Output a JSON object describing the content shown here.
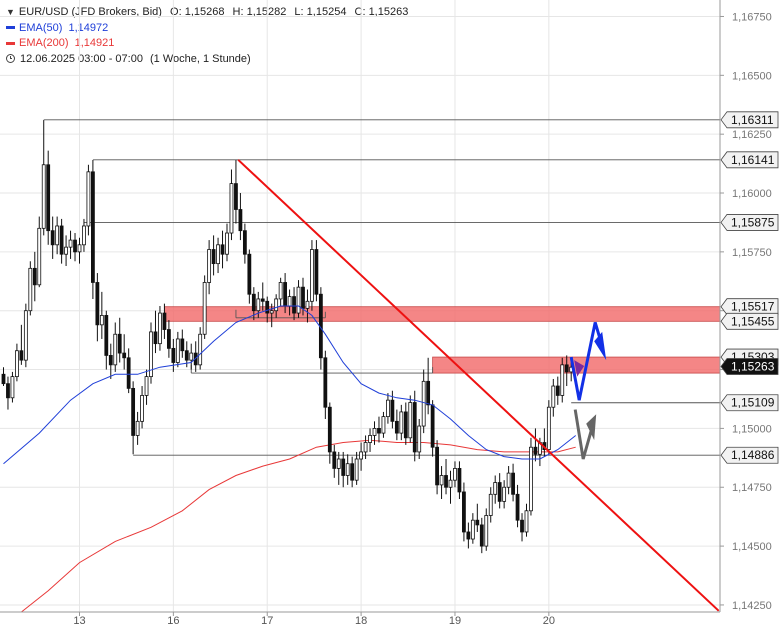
{
  "header": {
    "symbol": "EUR/USD (JFD Brokers, Bid)",
    "open_label": "O:",
    "open": "1,15268",
    "high_label": "H:",
    "high": "1,15282",
    "low_label": "L:",
    "low": "1,15254",
    "close_label": "C:",
    "close": "1,15263",
    "ema50_label": "EMA(50)",
    "ema50_value": "1,14972",
    "ema200_label": "EMA(200)",
    "ema200_value": "1,14921",
    "timestamp": "12.06.2025 03:00 - 07:00",
    "timeframe": "(1 Woche, 1 Stunde)"
  },
  "colors": {
    "ema50": "#1f3fd8",
    "ema200": "#e83838",
    "trendline": "#ee1111",
    "zone": "#f26b6b",
    "arrow_blue": "#1230e6",
    "arrow_gray": "#666666",
    "arrow_purple": "#7d2a9c",
    "last_price_tag": "#111111"
  },
  "chart_data": {
    "type": "candlestick",
    "ylim": [
      1.1422,
      1.1682
    ],
    "y_ticks": [
      {
        "v": 1.1675,
        "label": "1,16750"
      },
      {
        "v": 1.165,
        "label": "1,16500"
      },
      {
        "v": 1.1625,
        "label": "1,16250"
      },
      {
        "v": 1.16,
        "label": "1,16000"
      },
      {
        "v": 1.1575,
        "label": "1,15750"
      },
      {
        "v": 1.155,
        "label": "1,15500"
      },
      {
        "v": 1.1525,
        "label": "1,15250"
      },
      {
        "v": 1.15,
        "label": "1,15000"
      },
      {
        "v": 1.1475,
        "label": "1,14750"
      },
      {
        "v": 1.145,
        "label": "1,14500"
      },
      {
        "v": 1.1425,
        "label": "1,14250"
      }
    ],
    "x_ticks": [
      {
        "i": 17,
        "label": "13"
      },
      {
        "i": 38,
        "label": "16"
      },
      {
        "i": 59,
        "label": "17"
      },
      {
        "i": 80,
        "label": "18"
      },
      {
        "i": 101,
        "label": "19"
      },
      {
        "i": 122,
        "label": "20"
      }
    ],
    "levels": [
      {
        "v": 1.16311,
        "label": "1,16311",
        "from": 9
      },
      {
        "v": 1.16141,
        "label": "1,16141",
        "from": 20
      },
      {
        "v": 1.15875,
        "label": "1,15875",
        "from": 18
      },
      {
        "v": 1.15109,
        "label": "1,15109",
        "from": 127
      },
      {
        "v": 1.14886,
        "label": "1,14886",
        "from": 29
      }
    ],
    "box_levels": [
      {
        "v": 1.15517,
        "label": "1,15517"
      },
      {
        "v": 1.15455,
        "label": "1,15455"
      },
      {
        "v": 1.15303,
        "label": "1,15303"
      }
    ],
    "zones": [
      {
        "top": 1.15517,
        "bottom": 1.15455,
        "from": 36
      },
      {
        "top": 1.15303,
        "bottom": 1.15235,
        "from": 96
      }
    ],
    "last_price": {
      "v": 1.15263,
      "label": "1,15263"
    },
    "trendline": [
      {
        "i": 52.5,
        "v": 1.16141
      },
      {
        "i": 160,
        "v": 1.14225
      }
    ],
    "aux_lines": [
      {
        "from": 52,
        "to": 72,
        "v": 1.1547
      },
      {
        "from": 42,
        "to": 96,
        "v": 1.15235
      }
    ],
    "ohlc": [
      [
        1.1523,
        1.1526,
        1.1518,
        1.1519
      ],
      [
        1.1519,
        1.1522,
        1.1508,
        1.1513
      ],
      [
        1.1513,
        1.1524,
        1.1511,
        1.1522
      ],
      [
        1.1522,
        1.1536,
        1.152,
        1.1533
      ],
      [
        1.1533,
        1.1544,
        1.1527,
        1.1529
      ],
      [
        1.1529,
        1.1553,
        1.1526,
        1.155
      ],
      [
        1.155,
        1.1571,
        1.1548,
        1.1568
      ],
      [
        1.1568,
        1.1575,
        1.1554,
        1.1561
      ],
      [
        1.1561,
        1.159,
        1.156,
        1.1585
      ],
      [
        1.1585,
        1.1631,
        1.1582,
        1.1612
      ],
      [
        1.1612,
        1.1618,
        1.1578,
        1.1584
      ],
      [
        1.1584,
        1.159,
        1.1572,
        1.1578
      ],
      [
        1.1578,
        1.159,
        1.1574,
        1.1586
      ],
      [
        1.1586,
        1.1589,
        1.157,
        1.1574
      ],
      [
        1.1574,
        1.1582,
        1.1569,
        1.1577
      ],
      [
        1.1577,
        1.1584,
        1.1572,
        1.158
      ],
      [
        1.158,
        1.1583,
        1.1571,
        1.1575
      ],
      [
        1.1575,
        1.1581,
        1.157,
        1.1578
      ],
      [
        1.1578,
        1.1589,
        1.1575,
        1.1586
      ],
      [
        1.1586,
        1.1612,
        1.1582,
        1.1609
      ],
      [
        1.1609,
        1.1614,
        1.1555,
        1.1562
      ],
      [
        1.1562,
        1.1566,
        1.1537,
        1.1544
      ],
      [
        1.1544,
        1.1558,
        1.1538,
        1.1548
      ],
      [
        1.1548,
        1.155,
        1.1525,
        1.1531
      ],
      [
        1.1531,
        1.1536,
        1.1521,
        1.1527
      ],
      [
        1.1527,
        1.1545,
        1.1524,
        1.154
      ],
      [
        1.154,
        1.1547,
        1.1528,
        1.1532
      ],
      [
        1.1532,
        1.154,
        1.1525,
        1.153
      ],
      [
        1.153,
        1.1534,
        1.1515,
        1.1517
      ],
      [
        1.1517,
        1.152,
        1.1489,
        1.1497
      ],
      [
        1.1497,
        1.1507,
        1.1493,
        1.1503
      ],
      [
        1.1503,
        1.1518,
        1.15,
        1.1514
      ],
      [
        1.1514,
        1.1525,
        1.151,
        1.1522
      ],
      [
        1.1522,
        1.1545,
        1.1519,
        1.1541
      ],
      [
        1.1541,
        1.155,
        1.1532,
        1.1536
      ],
      [
        1.1536,
        1.1552,
        1.1533,
        1.1549
      ],
      [
        1.1549,
        1.1553,
        1.1538,
        1.1542
      ],
      [
        1.1542,
        1.1546,
        1.153,
        1.1534
      ],
      [
        1.1534,
        1.1538,
        1.1524,
        1.1528
      ],
      [
        1.1528,
        1.1541,
        1.1526,
        1.1538
      ],
      [
        1.1538,
        1.1542,
        1.153,
        1.1533
      ],
      [
        1.1533,
        1.1537,
        1.1526,
        1.1529
      ],
      [
        1.1529,
        1.1536,
        1.1525,
        1.1532
      ],
      [
        1.1532,
        1.1537,
        1.1524,
        1.1527
      ],
      [
        1.1527,
        1.1543,
        1.1525,
        1.154
      ],
      [
        1.154,
        1.1565,
        1.1538,
        1.1562
      ],
      [
        1.1562,
        1.158,
        1.1557,
        1.1576
      ],
      [
        1.1576,
        1.1582,
        1.1565,
        1.157
      ],
      [
        1.157,
        1.1581,
        1.1566,
        1.1578
      ],
      [
        1.1578,
        1.1584,
        1.1568,
        1.1574
      ],
      [
        1.1574,
        1.1587,
        1.1571,
        1.1583
      ],
      [
        1.1583,
        1.161,
        1.158,
        1.1604
      ],
      [
        1.1604,
        1.1614,
        1.1587,
        1.1593
      ],
      [
        1.1593,
        1.16,
        1.158,
        1.1584
      ],
      [
        1.1584,
        1.1587,
        1.157,
        1.1574
      ],
      [
        1.1574,
        1.1576,
        1.1553,
        1.1557
      ],
      [
        1.1557,
        1.156,
        1.1546,
        1.155
      ],
      [
        1.155,
        1.1558,
        1.1547,
        1.1555
      ],
      [
        1.1555,
        1.1562,
        1.155,
        1.1554
      ],
      [
        1.1554,
        1.1556,
        1.1545,
        1.1549
      ],
      [
        1.1549,
        1.1553,
        1.1543,
        1.155
      ],
      [
        1.155,
        1.1557,
        1.1547,
        1.1555
      ],
      [
        1.1555,
        1.1564,
        1.1552,
        1.1562
      ],
      [
        1.1562,
        1.1566,
        1.1549,
        1.1552
      ],
      [
        1.1552,
        1.1559,
        1.1548,
        1.1556
      ],
      [
        1.1556,
        1.156,
        1.1546,
        1.1549
      ],
      [
        1.1549,
        1.1563,
        1.1547,
        1.156
      ],
      [
        1.156,
        1.1564,
        1.1548,
        1.1551
      ],
      [
        1.1551,
        1.1559,
        1.1545,
        1.1554
      ],
      [
        1.1554,
        1.158,
        1.155,
        1.1576
      ],
      [
        1.1576,
        1.158,
        1.1554,
        1.1557
      ],
      [
        1.1557,
        1.156,
        1.1525,
        1.153
      ],
      [
        1.153,
        1.1533,
        1.1504,
        1.1509
      ],
      [
        1.1509,
        1.1511,
        1.1485,
        1.149
      ],
      [
        1.149,
        1.1493,
        1.1479,
        1.1483
      ],
      [
        1.1483,
        1.149,
        1.1476,
        1.1487
      ],
      [
        1.1487,
        1.149,
        1.1475,
        1.148
      ],
      [
        1.148,
        1.1489,
        1.1476,
        1.1485
      ],
      [
        1.1485,
        1.1488,
        1.1475,
        1.1478
      ],
      [
        1.1478,
        1.149,
        1.1476,
        1.1487
      ],
      [
        1.1487,
        1.1494,
        1.1482,
        1.149
      ],
      [
        1.149,
        1.1497,
        1.1487,
        1.1494
      ],
      [
        1.1494,
        1.15,
        1.149,
        1.1497
      ],
      [
        1.1497,
        1.1503,
        1.1493,
        1.15
      ],
      [
        1.15,
        1.1505,
        1.1494,
        1.1498
      ],
      [
        1.1498,
        1.1507,
        1.1496,
        1.1505
      ],
      [
        1.1505,
        1.1515,
        1.1502,
        1.1512
      ],
      [
        1.1512,
        1.1516,
        1.15,
        1.1503
      ],
      [
        1.1503,
        1.1508,
        1.1495,
        1.1498
      ],
      [
        1.1498,
        1.151,
        1.1495,
        1.1507
      ],
      [
        1.1507,
        1.1511,
        1.1493,
        1.1496
      ],
      [
        1.1496,
        1.1514,
        1.1494,
        1.1511
      ],
      [
        1.1511,
        1.1516,
        1.1486,
        1.149
      ],
      [
        1.149,
        1.1504,
        1.1487,
        1.1501
      ],
      [
        1.1501,
        1.1525,
        1.1498,
        1.152
      ],
      [
        1.152,
        1.153,
        1.1506,
        1.151
      ],
      [
        1.151,
        1.1512,
        1.1488,
        1.1492
      ],
      [
        1.1492,
        1.1495,
        1.1472,
        1.1476
      ],
      [
        1.1476,
        1.1484,
        1.147,
        1.148
      ],
      [
        1.148,
        1.1487,
        1.1472,
        1.1475
      ],
      [
        1.1475,
        1.1482,
        1.1468,
        1.1478
      ],
      [
        1.1478,
        1.1486,
        1.1475,
        1.1483
      ],
      [
        1.1483,
        1.1486,
        1.147,
        1.1473
      ],
      [
        1.1473,
        1.1477,
        1.1452,
        1.1456
      ],
      [
        1.1456,
        1.146,
        1.1449,
        1.1453
      ],
      [
        1.1453,
        1.1464,
        1.1451,
        1.1461
      ],
      [
        1.1461,
        1.1468,
        1.1456,
        1.1459
      ],
      [
        1.1459,
        1.1462,
        1.1447,
        1.145
      ],
      [
        1.145,
        1.1466,
        1.1448,
        1.1463
      ],
      [
        1.1463,
        1.1475,
        1.146,
        1.1472
      ],
      [
        1.1472,
        1.148,
        1.1468,
        1.1477
      ],
      [
        1.1477,
        1.1481,
        1.1466,
        1.1469
      ],
      [
        1.1469,
        1.1478,
        1.1466,
        1.1475
      ],
      [
        1.1475,
        1.1484,
        1.1472,
        1.1481
      ],
      [
        1.1481,
        1.1485,
        1.1469,
        1.1472
      ],
      [
        1.1472,
        1.1476,
        1.1458,
        1.1461
      ],
      [
        1.1461,
        1.1464,
        1.1452,
        1.1456
      ],
      [
        1.1456,
        1.1468,
        1.1454,
        1.1465
      ],
      [
        1.1465,
        1.1496,
        1.1463,
        1.1492
      ],
      [
        1.1492,
        1.15,
        1.1486,
        1.1489
      ],
      [
        1.1489,
        1.1496,
        1.1484,
        1.1494
      ],
      [
        1.1494,
        1.15,
        1.1488,
        1.1491
      ],
      [
        1.1491,
        1.1512,
        1.1489,
        1.1509
      ],
      [
        1.1509,
        1.1521,
        1.1505,
        1.1518
      ],
      [
        1.1518,
        1.1522,
        1.151,
        1.1514
      ],
      [
        1.1514,
        1.153,
        1.1511,
        1.1527
      ],
      [
        1.1527,
        1.1531,
        1.1518,
        1.1524
      ],
      [
        1.1524,
        1.1528,
        1.152,
        1.1526
      ]
    ],
    "ema50": [
      [
        0,
        1.1485
      ],
      [
        8,
        1.1498
      ],
      [
        15,
        1.1512
      ],
      [
        20,
        1.1519
      ],
      [
        25,
        1.1523
      ],
      [
        30,
        1.1523
      ],
      [
        35,
        1.1526
      ],
      [
        42,
        1.1528
      ],
      [
        47,
        1.1537
      ],
      [
        52,
        1.1545
      ],
      [
        57,
        1.1549
      ],
      [
        62,
        1.1552
      ],
      [
        66,
        1.1552
      ],
      [
        69,
        1.1548
      ],
      [
        72,
        1.154
      ],
      [
        76,
        1.1528
      ],
      [
        80,
        1.1519
      ],
      [
        84,
        1.1515
      ],
      [
        88,
        1.1513
      ],
      [
        92,
        1.1512
      ],
      [
        96,
        1.151
      ],
      [
        100,
        1.1504
      ],
      [
        104,
        1.1497
      ],
      [
        108,
        1.1491
      ],
      [
        112,
        1.1488
      ],
      [
        116,
        1.1487
      ],
      [
        120,
        1.1487
      ],
      [
        124,
        1.1491
      ],
      [
        128,
        1.1497
      ]
    ],
    "ema200": [
      [
        4,
        1.1422
      ],
      [
        10,
        1.1431
      ],
      [
        17,
        1.1443
      ],
      [
        25,
        1.1452
      ],
      [
        33,
        1.1458
      ],
      [
        40,
        1.1465
      ],
      [
        46,
        1.1474
      ],
      [
        52,
        1.148
      ],
      [
        58,
        1.1484
      ],
      [
        64,
        1.1487
      ],
      [
        70,
        1.1492
      ],
      [
        76,
        1.1494
      ],
      [
        82,
        1.1495
      ],
      [
        88,
        1.1494
      ],
      [
        94,
        1.1494
      ],
      [
        100,
        1.1493
      ],
      [
        106,
        1.1491
      ],
      [
        112,
        1.149
      ],
      [
        118,
        1.149
      ],
      [
        124,
        1.149
      ],
      [
        128,
        1.1492
      ]
    ]
  }
}
